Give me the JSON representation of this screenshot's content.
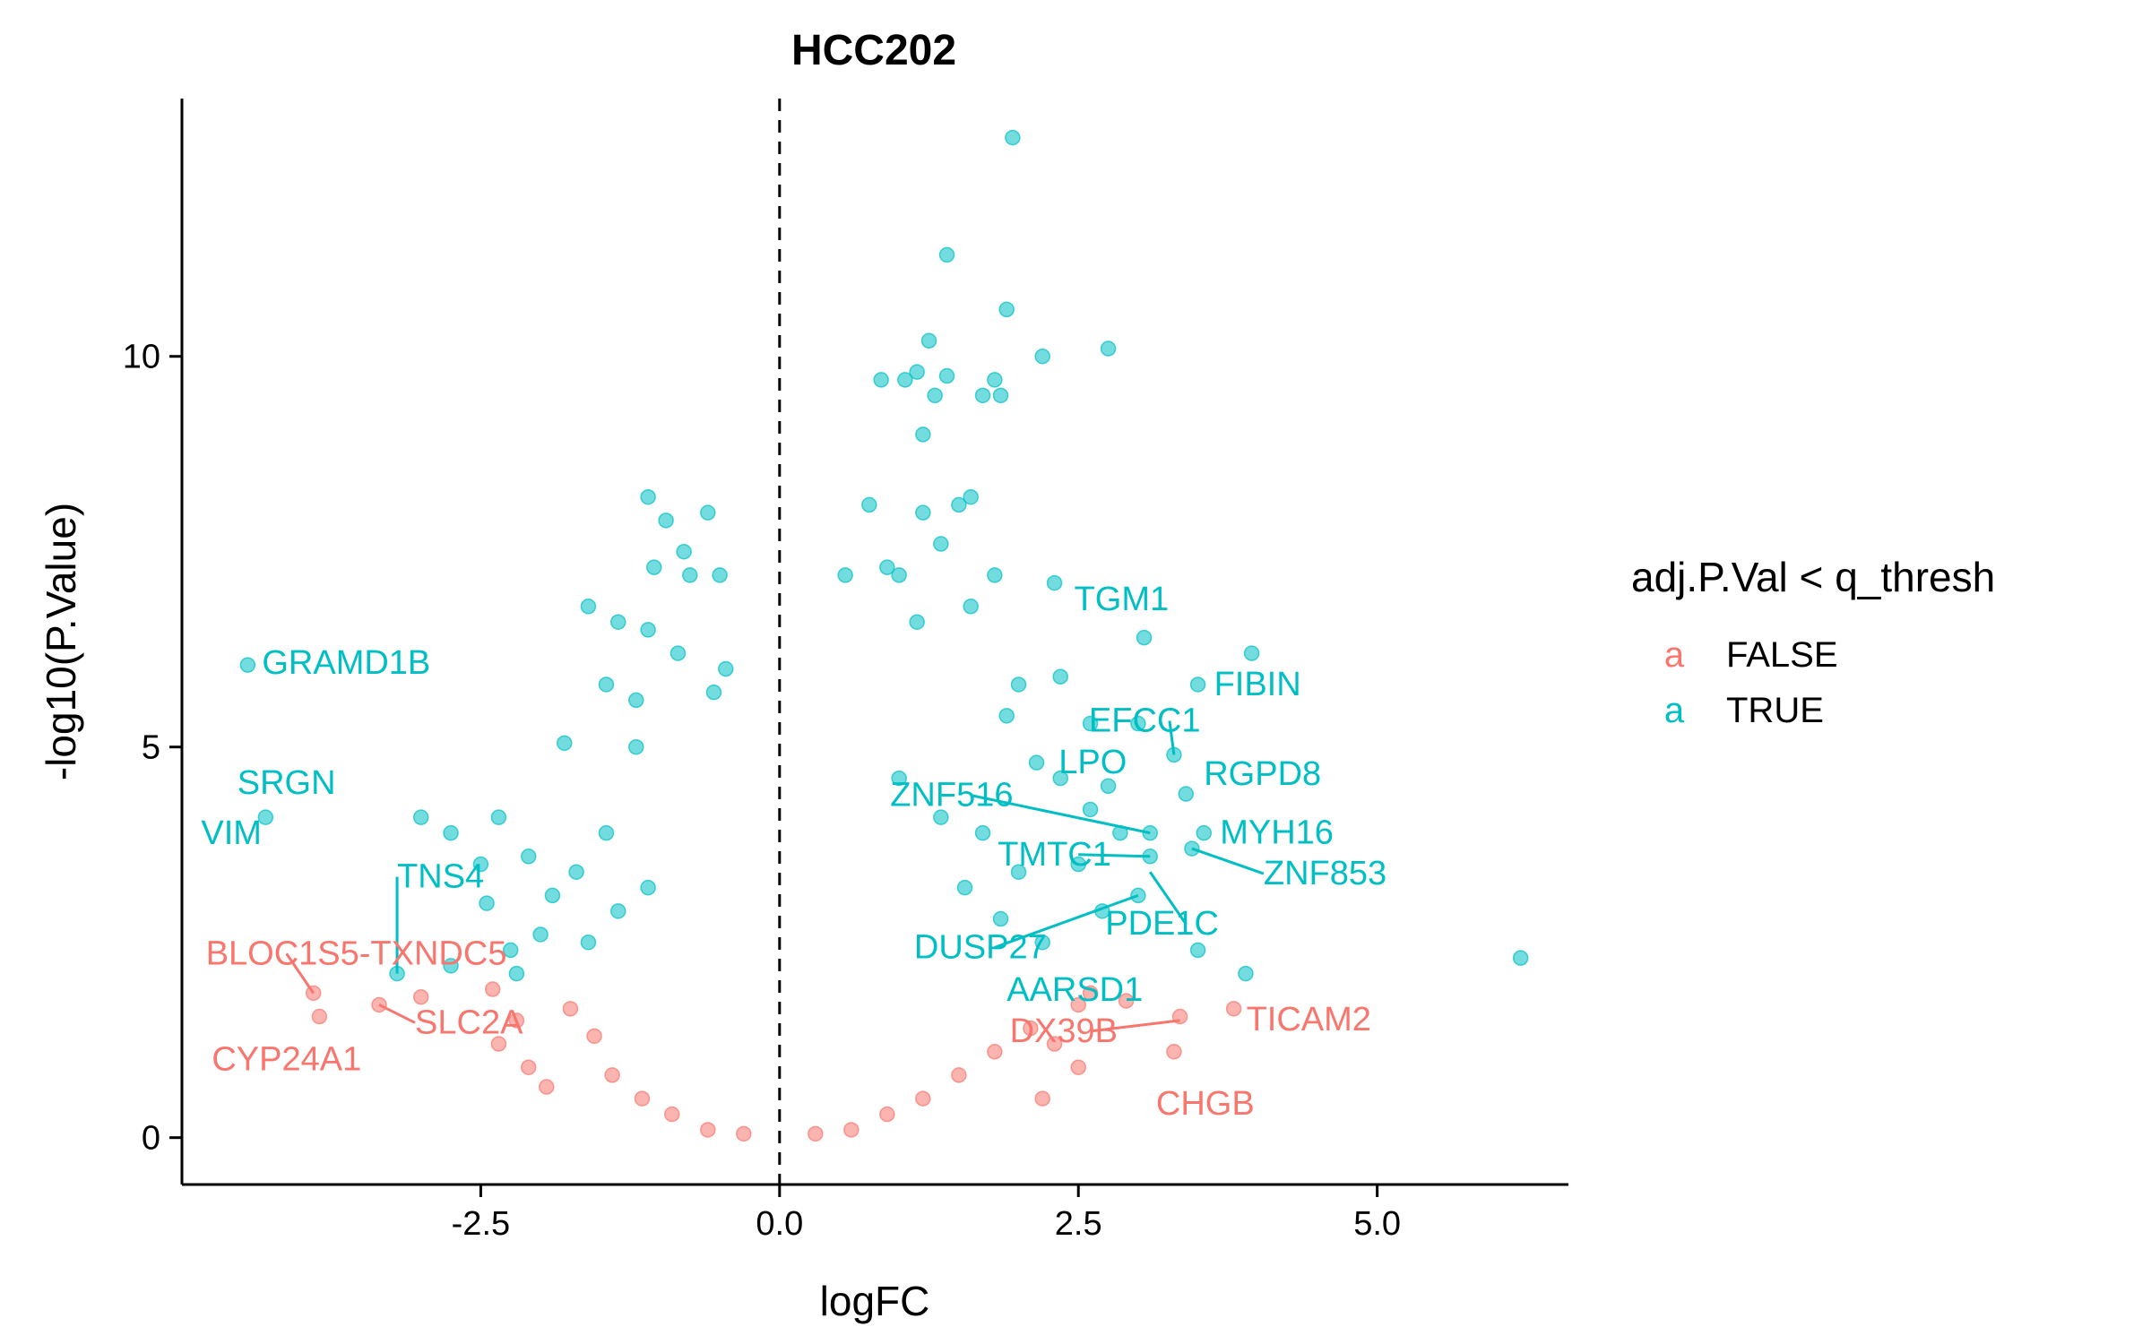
{
  "chart_data": {
    "type": "scatter",
    "title": "HCC202",
    "xlabel": "logFC",
    "ylabel": "-log10(P.Value)",
    "xlim": [
      -5.0,
      6.6
    ],
    "ylim": [
      -0.6,
      13.3
    ],
    "x_ticks": [
      -2.5,
      0.0,
      2.5,
      5.0
    ],
    "x_tick_labels": [
      "-2.5",
      "0.0",
      "2.5",
      "5.0"
    ],
    "y_ticks": [
      0,
      5,
      10
    ],
    "y_tick_labels": [
      "0",
      "5",
      "10"
    ],
    "vline": 0.0,
    "grid": false,
    "legend": {
      "title": "adj.P.Val < q_thresh",
      "placement": "right",
      "glyph": "a",
      "entries": [
        {
          "name": "FALSE",
          "color": "#F8766D"
        },
        {
          "name": "TRUE",
          "color": "#00BFC4"
        }
      ]
    },
    "series": [
      {
        "name": "TRUE",
        "color": "#00BFC4",
        "points": [
          {
            "x": 1.95,
            "y": 12.8
          },
          {
            "x": 1.4,
            "y": 11.3
          },
          {
            "x": 1.9,
            "y": 10.6
          },
          {
            "x": 1.25,
            "y": 10.2
          },
          {
            "x": 2.75,
            "y": 10.1
          },
          {
            "x": 2.2,
            "y": 10.0
          },
          {
            "x": 1.15,
            "y": 9.8
          },
          {
            "x": 1.4,
            "y": 9.75
          },
          {
            "x": 1.8,
            "y": 9.7
          },
          {
            "x": 0.85,
            "y": 9.7
          },
          {
            "x": 1.3,
            "y": 9.5
          },
          {
            "x": 1.7,
            "y": 9.5
          },
          {
            "x": 1.2,
            "y": 9.0
          },
          {
            "x": 1.85,
            "y": 9.5
          },
          {
            "x": 1.05,
            "y": 9.7
          },
          {
            "x": 1.6,
            "y": 8.2
          },
          {
            "x": 0.75,
            "y": 8.1
          },
          {
            "x": 1.2,
            "y": 8.0
          },
          {
            "x": 1.5,
            "y": 8.1
          },
          {
            "x": 1.35,
            "y": 7.6
          },
          {
            "x": 0.9,
            "y": 7.3
          },
          {
            "x": 1.0,
            "y": 7.2
          },
          {
            "x": 1.8,
            "y": 7.2
          },
          {
            "x": 0.55,
            "y": 7.2
          },
          {
            "x": 1.6,
            "y": 6.8
          },
          {
            "x": 1.15,
            "y": 6.6
          },
          {
            "x": 2.3,
            "y": 7.1
          },
          {
            "x": 3.05,
            "y": 6.4
          },
          {
            "x": 3.95,
            "y": 6.2
          },
          {
            "x": 3.5,
            "y": 5.8
          },
          {
            "x": 3.0,
            "y": 5.3
          },
          {
            "x": 3.3,
            "y": 4.9
          },
          {
            "x": 2.35,
            "y": 5.9
          },
          {
            "x": 2.0,
            "y": 5.8
          },
          {
            "x": 1.9,
            "y": 5.4
          },
          {
            "x": 2.6,
            "y": 5.3
          },
          {
            "x": 3.4,
            "y": 4.4
          },
          {
            "x": 3.55,
            "y": 3.9
          },
          {
            "x": 3.45,
            "y": 3.7
          },
          {
            "x": 3.1,
            "y": 3.9
          },
          {
            "x": 2.75,
            "y": 4.5
          },
          {
            "x": 2.6,
            "y": 4.2
          },
          {
            "x": 2.35,
            "y": 4.6
          },
          {
            "x": 2.15,
            "y": 4.8
          },
          {
            "x": 2.85,
            "y": 3.9
          },
          {
            "x": 2.5,
            "y": 3.5
          },
          {
            "x": 3.1,
            "y": 3.6
          },
          {
            "x": 3.0,
            "y": 3.1
          },
          {
            "x": 2.7,
            "y": 2.9
          },
          {
            "x": 3.5,
            "y": 2.4
          },
          {
            "x": 3.9,
            "y": 2.1
          },
          {
            "x": 6.2,
            "y": 2.3
          },
          {
            "x": 2.2,
            "y": 2.5
          },
          {
            "x": 1.85,
            "y": 2.8
          },
          {
            "x": 1.55,
            "y": 3.2
          },
          {
            "x": 2.0,
            "y": 3.4
          },
          {
            "x": 1.7,
            "y": 3.9
          },
          {
            "x": 1.35,
            "y": 4.1
          },
          {
            "x": 1.0,
            "y": 4.6
          },
          {
            "x": -1.1,
            "y": 8.2
          },
          {
            "x": -0.95,
            "y": 7.9
          },
          {
            "x": -0.6,
            "y": 8.0
          },
          {
            "x": -0.8,
            "y": 7.5
          },
          {
            "x": -1.05,
            "y": 7.3
          },
          {
            "x": -0.75,
            "y": 7.2
          },
          {
            "x": -0.5,
            "y": 7.2
          },
          {
            "x": -1.6,
            "y": 6.8
          },
          {
            "x": -1.35,
            "y": 6.6
          },
          {
            "x": -1.1,
            "y": 6.5
          },
          {
            "x": -0.85,
            "y": 6.2
          },
          {
            "x": -0.45,
            "y": 6.0
          },
          {
            "x": -1.45,
            "y": 5.8
          },
          {
            "x": -1.2,
            "y": 5.6
          },
          {
            "x": -0.55,
            "y": 5.7
          },
          {
            "x": -1.8,
            "y": 5.05
          },
          {
            "x": -1.2,
            "y": 5.0
          },
          {
            "x": -2.35,
            "y": 4.1
          },
          {
            "x": -2.1,
            "y": 3.6
          },
          {
            "x": -1.7,
            "y": 3.4
          },
          {
            "x": -1.45,
            "y": 3.9
          },
          {
            "x": -1.9,
            "y": 3.1
          },
          {
            "x": -2.0,
            "y": 2.6
          },
          {
            "x": -2.25,
            "y": 2.4
          },
          {
            "x": -2.45,
            "y": 3.0
          },
          {
            "x": -2.5,
            "y": 3.5
          },
          {
            "x": -2.75,
            "y": 2.2
          },
          {
            "x": -1.6,
            "y": 2.5
          },
          {
            "x": -1.35,
            "y": 2.9
          },
          {
            "x": -1.1,
            "y": 3.2
          },
          {
            "x": -2.2,
            "y": 2.1
          },
          {
            "x": -4.45,
            "y": 6.05
          },
          {
            "x": -4.3,
            "y": 4.1
          },
          {
            "x": -3.0,
            "y": 4.1
          },
          {
            "x": -2.75,
            "y": 3.9
          },
          {
            "x": -3.2,
            "y": 2.1
          }
        ]
      },
      {
        "name": "FALSE",
        "color": "#F8766D",
        "points": [
          {
            "x": -3.9,
            "y": 1.85
          },
          {
            "x": -3.35,
            "y": 1.7
          },
          {
            "x": -3.0,
            "y": 1.8
          },
          {
            "x": -3.85,
            "y": 1.55
          },
          {
            "x": -2.4,
            "y": 1.9
          },
          {
            "x": -2.2,
            "y": 1.5
          },
          {
            "x": -2.35,
            "y": 1.2
          },
          {
            "x": -2.1,
            "y": 0.9
          },
          {
            "x": -1.95,
            "y": 0.65
          },
          {
            "x": -1.55,
            "y": 1.3
          },
          {
            "x": -1.4,
            "y": 0.8
          },
          {
            "x": -1.75,
            "y": 1.65
          },
          {
            "x": -1.15,
            "y": 0.5
          },
          {
            "x": -0.9,
            "y": 0.3
          },
          {
            "x": -0.6,
            "y": 0.1
          },
          {
            "x": -0.3,
            "y": 0.05
          },
          {
            "x": 0.3,
            "y": 0.05
          },
          {
            "x": 0.6,
            "y": 0.1
          },
          {
            "x": 0.9,
            "y": 0.3
          },
          {
            "x": 1.2,
            "y": 0.5
          },
          {
            "x": 1.5,
            "y": 0.8
          },
          {
            "x": 1.8,
            "y": 1.1
          },
          {
            "x": 2.1,
            "y": 1.4
          },
          {
            "x": 2.3,
            "y": 1.2
          },
          {
            "x": 2.5,
            "y": 0.9
          },
          {
            "x": 2.2,
            "y": 0.5
          },
          {
            "x": 2.5,
            "y": 1.7
          },
          {
            "x": 2.6,
            "y": 1.85
          },
          {
            "x": 2.9,
            "y": 1.75
          },
          {
            "x": 3.35,
            "y": 1.55
          },
          {
            "x": 3.3,
            "y": 1.1
          },
          {
            "x": 3.8,
            "y": 1.65
          }
        ]
      }
    ],
    "annotations": [
      {
        "text": "GRAMD1B",
        "x": -4.45,
        "y": 6.05,
        "series": "TRUE"
      },
      {
        "text": "SRGN",
        "x": -3.0,
        "y": 4.1,
        "series": "TRUE"
      },
      {
        "text": "VIM",
        "x": -4.3,
        "y": 4.1,
        "series": "TRUE"
      },
      {
        "text": "TNS4",
        "x": -3.2,
        "y": 2.1,
        "series": "TRUE"
      },
      {
        "text": "TGM1",
        "x": 2.6,
        "y": 6.8,
        "series": "TRUE"
      },
      {
        "text": "FIBIN",
        "x": 3.5,
        "y": 5.8,
        "series": "TRUE"
      },
      {
        "text": "EFCC1",
        "x": 3.3,
        "y": 4.9,
        "series": "TRUE"
      },
      {
        "text": "LPO",
        "x": 2.95,
        "y": 4.8,
        "series": "TRUE"
      },
      {
        "text": "RGPD8",
        "x": 3.4,
        "y": 4.4,
        "series": "TRUE"
      },
      {
        "text": "ZNF516",
        "x": 3.1,
        "y": 3.9,
        "series": "TRUE"
      },
      {
        "text": "MYH16",
        "x": 3.55,
        "y": 3.9,
        "series": "TRUE"
      },
      {
        "text": "TMTC1",
        "x": 3.1,
        "y": 3.6,
        "series": "TRUE"
      },
      {
        "text": "ZNF853",
        "x": 3.45,
        "y": 3.7,
        "series": "TRUE"
      },
      {
        "text": "DUSP27",
        "x": 3.0,
        "y": 3.1,
        "series": "TRUE"
      },
      {
        "text": "PDE1C",
        "x": 3.1,
        "y": 3.4,
        "series": "TRUE"
      },
      {
        "text": "AARSD1",
        "x": 2.2,
        "y": 2.3,
        "series": "TRUE"
      },
      {
        "text": "BLOC1S5-TXNDC5",
        "x": -3.9,
        "y": 1.85,
        "series": "FALSE"
      },
      {
        "text": "CYP24A1",
        "x": -3.85,
        "y": 1.55,
        "series": "FALSE"
      },
      {
        "text": "SLC2A",
        "x": -3.35,
        "y": 1.7,
        "series": "FALSE"
      },
      {
        "text": "DX39B",
        "x": 3.35,
        "y": 1.5,
        "series": "FALSE"
      },
      {
        "text": "TICAM2",
        "x": 3.8,
        "y": 1.65,
        "series": "FALSE"
      },
      {
        "text": "CHGB",
        "x": 3.3,
        "y": 1.1,
        "series": "FALSE"
      }
    ]
  }
}
